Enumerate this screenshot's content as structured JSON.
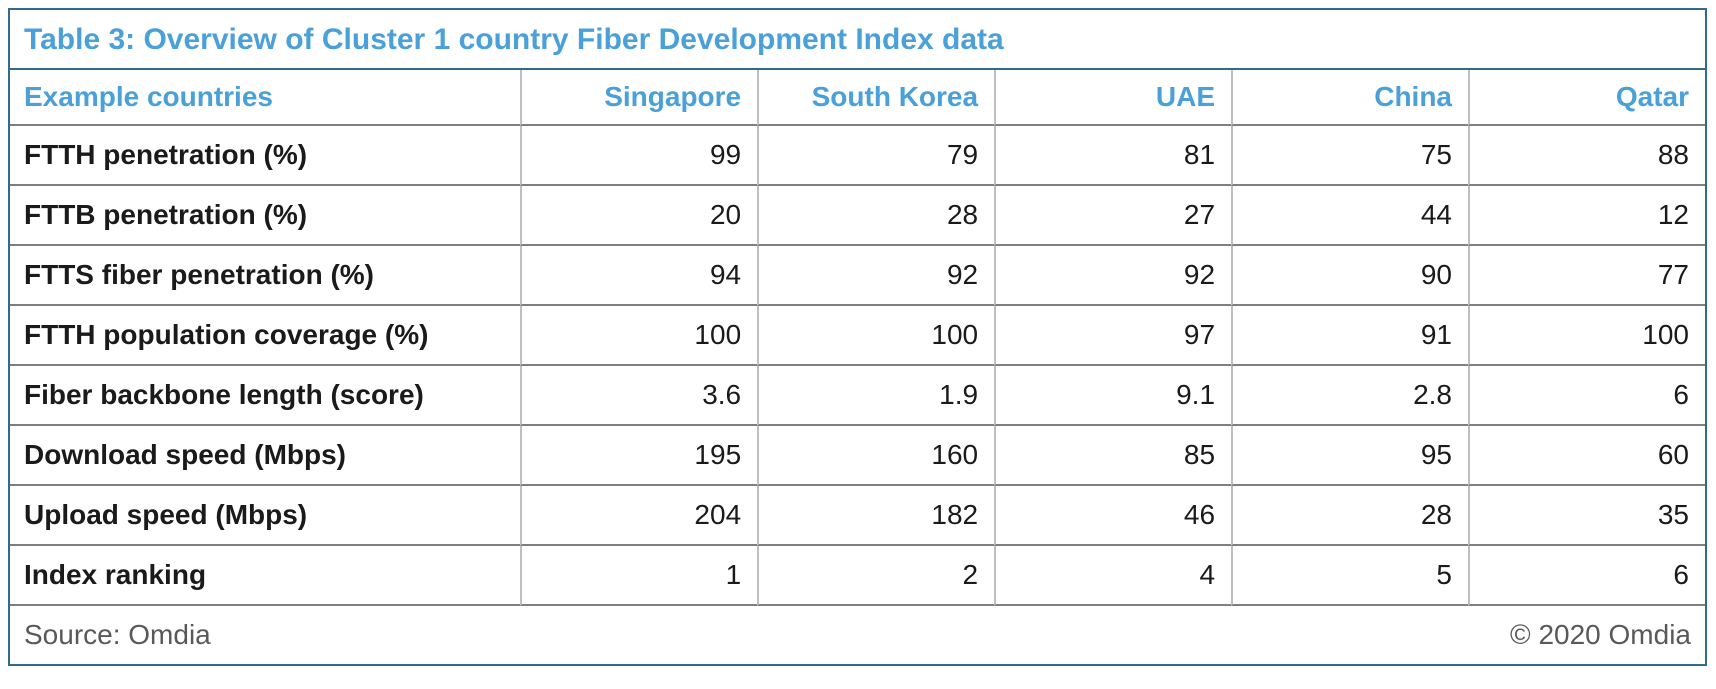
{
  "table": {
    "title": "Table 3: Overview of Cluster 1 country Fiber Development Index data",
    "columns": [
      "Example countries",
      "Singapore",
      "South Korea",
      "UAE",
      "China",
      "Qatar"
    ],
    "rows": [
      {
        "label": "FTTH penetration (%)",
        "values": [
          "99",
          "79",
          "81",
          "75",
          "88"
        ]
      },
      {
        "label": "FTTB penetration (%)",
        "values": [
          "20",
          "28",
          "27",
          "44",
          "12"
        ]
      },
      {
        "label": "FTTS fiber penetration (%)",
        "values": [
          "94",
          "92",
          "92",
          "90",
          "77"
        ]
      },
      {
        "label": "FTTH population coverage (%)",
        "values": [
          "100",
          "100",
          "97",
          "91",
          "100"
        ]
      },
      {
        "label": "Fiber backbone length (score)",
        "values": [
          "3.6",
          "1.9",
          "9.1",
          "2.8",
          "6"
        ]
      },
      {
        "label": "Download speed (Mbps)",
        "values": [
          "195",
          "160",
          "85",
          "95",
          "60"
        ]
      },
      {
        "label": "Upload speed (Mbps)",
        "values": [
          "204",
          "182",
          "46",
          "28",
          "35"
        ]
      },
      {
        "label": "Index ranking",
        "values": [
          "1",
          "2",
          "4",
          "5",
          "6"
        ]
      }
    ],
    "footer": {
      "source": "Source: Omdia",
      "copyright": "© 2020 Omdia"
    }
  },
  "colors": {
    "accent_blue": "#4AA0D8",
    "outer_border": "#2E6C8A",
    "grid_horizontal": "#7F7F7F",
    "grid_vertical": "#BFBFBF",
    "text_dark": "#1A1A1A",
    "text_gray": "#595959"
  },
  "chart_data": {
    "type": "table",
    "title": "Table 3: Overview of Cluster 1 country Fiber Development Index data",
    "categories": [
      "Singapore",
      "South Korea",
      "UAE",
      "China",
      "Qatar"
    ],
    "series": [
      {
        "name": "FTTH penetration (%)",
        "values": [
          99,
          79,
          81,
          75,
          88
        ]
      },
      {
        "name": "FTTB penetration (%)",
        "values": [
          20,
          28,
          27,
          44,
          12
        ]
      },
      {
        "name": "FTTS fiber penetration (%)",
        "values": [
          94,
          92,
          92,
          90,
          77
        ]
      },
      {
        "name": "FTTH population coverage (%)",
        "values": [
          100,
          100,
          97,
          91,
          100
        ]
      },
      {
        "name": "Fiber backbone length (score)",
        "values": [
          3.6,
          1.9,
          9.1,
          2.8,
          6
        ]
      },
      {
        "name": "Download speed (Mbps)",
        "values": [
          195,
          160,
          85,
          95,
          60
        ]
      },
      {
        "name": "Upload speed (Mbps)",
        "values": [
          204,
          182,
          46,
          28,
          35
        ]
      },
      {
        "name": "Index ranking",
        "values": [
          1,
          2,
          4,
          5,
          6
        ]
      }
    ],
    "source": "Source: Omdia",
    "copyright": "© 2020 Omdia"
  }
}
